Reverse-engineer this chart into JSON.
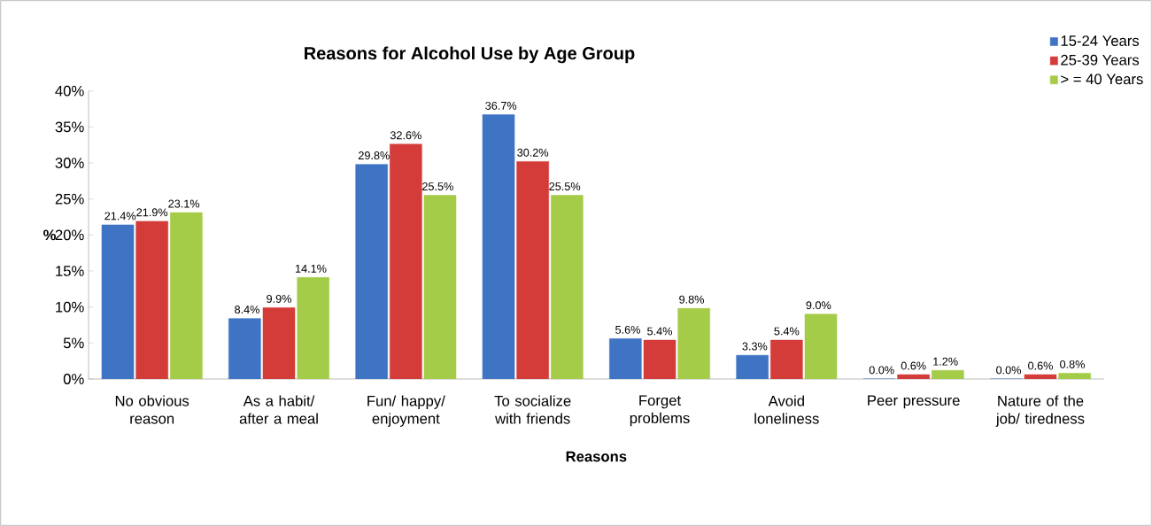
{
  "chart_data": {
    "type": "bar",
    "title": "Reasons for Alcohol Use by Age Group",
    "xlabel": "Reasons",
    "ylabel": "%",
    "categories": [
      "No obvious reason",
      "As a habit/ after a meal",
      "Fun/ happy/ enjoyment",
      "To socialize with friends",
      "Forget problems",
      "Avoid loneliness",
      "Peer pressure",
      "Nature of the job/ tiredness"
    ],
    "series": [
      {
        "name": "15-24 Years",
        "color": "#3f74c4",
        "values": [
          21.4,
          8.4,
          29.8,
          36.7,
          5.6,
          3.3,
          0.0,
          0.0
        ],
        "value_labels": [
          "21.4%",
          "8.4%",
          "29.8%",
          "36.7%",
          "5.6%",
          "3.3%",
          "0.0%",
          "0.0%"
        ]
      },
      {
        "name": "25-39 Years",
        "color": "#d43c3a",
        "values": [
          21.9,
          9.9,
          32.6,
          30.2,
          5.4,
          5.4,
          0.6,
          0.6
        ],
        "value_labels": [
          "21.9%",
          "9.9%",
          "32.6%",
          "30.2%",
          "5.4%",
          "5.4%",
          "0.6%",
          "0.6%"
        ]
      },
      {
        "name": "> = 40 Years",
        "color": "#a4cc48",
        "values": [
          23.1,
          14.1,
          25.5,
          25.5,
          9.8,
          9.0,
          1.2,
          0.8
        ],
        "value_labels": [
          "23.1%",
          "14.1%",
          "25.5%",
          "25.5%",
          "9.8%",
          "9.0%",
          "1.2%",
          "0.8%"
        ]
      }
    ],
    "ylim": [
      0,
      40
    ],
    "yticks": [
      {
        "value": 0,
        "label": "0%"
      },
      {
        "value": 5,
        "label": "5%"
      },
      {
        "value": 10,
        "label": "10%"
      },
      {
        "value": 15,
        "label": "15%"
      },
      {
        "value": 20,
        "label": "20%"
      },
      {
        "value": 25,
        "label": "25%"
      },
      {
        "value": 30,
        "label": "30%"
      },
      {
        "value": 35,
        "label": "35%"
      },
      {
        "value": 40,
        "label": "40%"
      }
    ],
    "legend": "top right",
    "grid": false
  }
}
